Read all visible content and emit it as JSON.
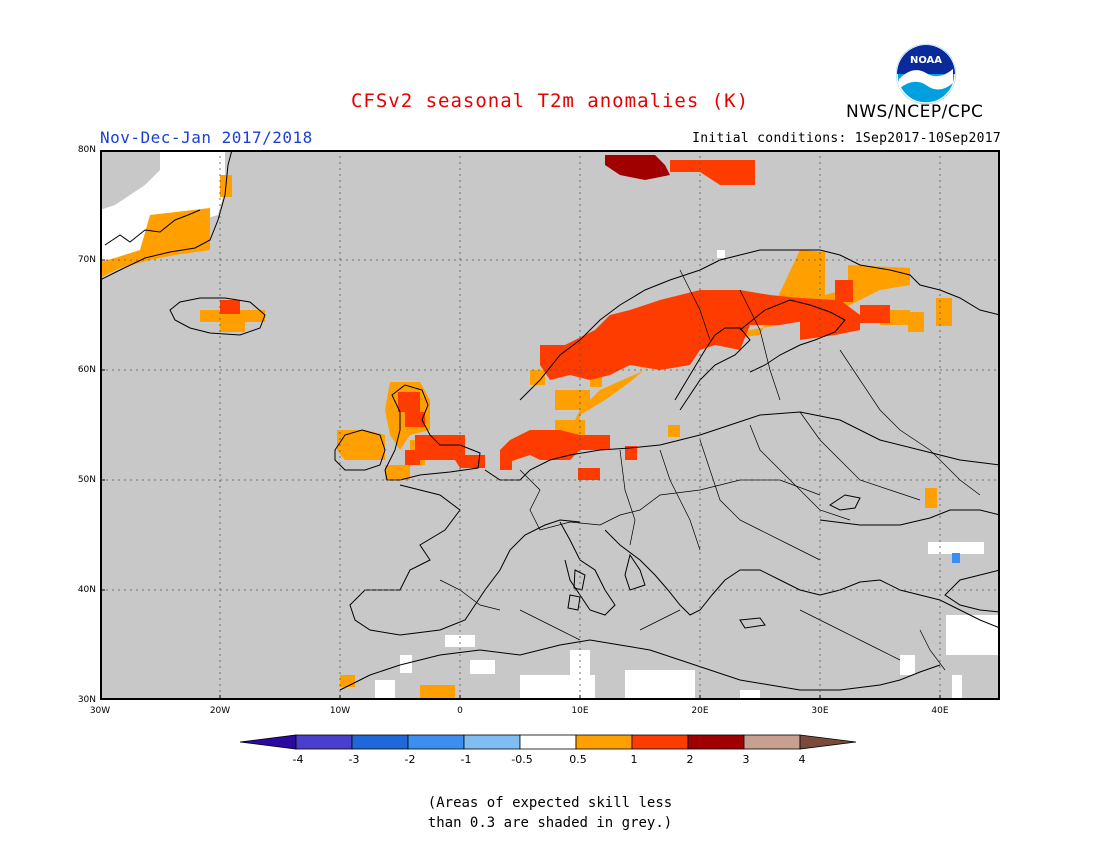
{
  "header": {
    "title": "CFSv2 seasonal T2m anomalies (K)",
    "org": "NWS/NCEP/CPC",
    "period": "Nov-Dec-Jan 2017/2018",
    "init": "Initial conditions: 1Sep2017-10Sep2017"
  },
  "logo": {
    "label": "NOAA",
    "icon": "noaa-logo-icon"
  },
  "map": {
    "lat_labels": [
      "80N",
      "70N",
      "60N",
      "50N",
      "40N",
      "30N"
    ],
    "lon_labels": [
      "30W",
      "20W",
      "10W",
      "0",
      "10E",
      "20E",
      "30E",
      "40E"
    ],
    "land_color": "#c8c8c8",
    "coast_color": "#000000"
  },
  "colorbar": {
    "labels": [
      "-4",
      "-3",
      "-2",
      "-1",
      "-0.5",
      "0.5",
      "1",
      "2",
      "3",
      "4"
    ],
    "colors": [
      "#2a0aa0",
      "#4a3fcc",
      "#1f68d9",
      "#3c8ff0",
      "#80bdf2",
      "#ffffff",
      "#ff9f00",
      "#ff3c00",
      "#a00000",
      "#c8a090",
      "#7a4a3a"
    ]
  },
  "note": {
    "line1": "(Areas of expected skill less",
    "line2": "than 0.3 are shaded in grey.)"
  }
}
